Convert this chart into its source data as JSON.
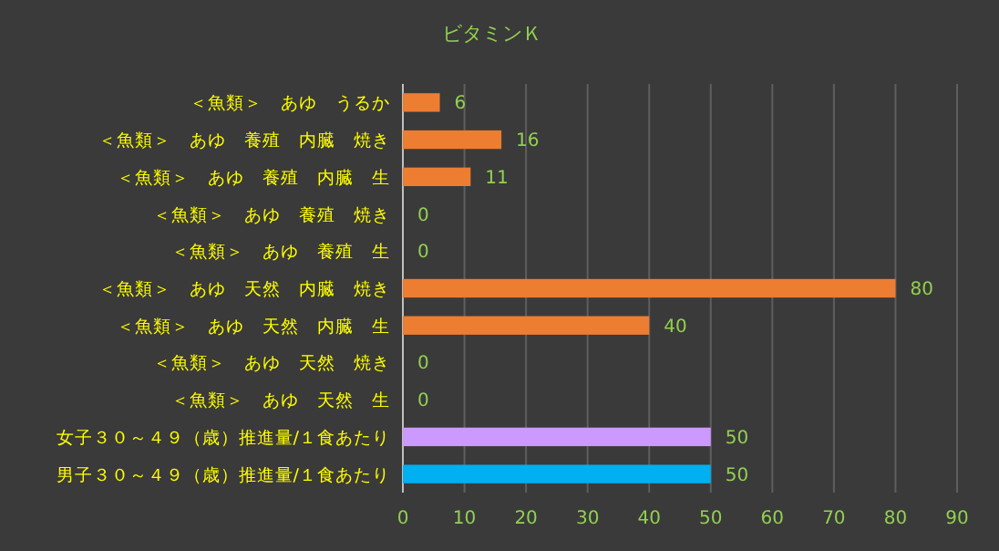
{
  "chart_data": {
    "type": "bar",
    "orientation": "horizontal",
    "title": "ビタミンＫ",
    "categories": [
      "＜魚類＞　あゆ　うるか",
      "＜魚類＞　あゆ　養殖　内臓　焼き",
      "＜魚類＞　あゆ　養殖　内臓　生",
      "＜魚類＞　あゆ　養殖　焼き",
      "＜魚類＞　あゆ　養殖　生",
      "＜魚類＞　あゆ　天然　内臓　焼き",
      "＜魚類＞　あゆ　天然　内臓　生",
      "＜魚類＞　あゆ　天然　焼き",
      "＜魚類＞　あゆ　天然　生",
      "女子３０～４９（歳）推進量/１食あたり",
      "男子３０～４９（歳）推進量/１食あたり"
    ],
    "values": [
      6,
      16,
      11,
      0,
      0,
      80,
      40,
      0,
      0,
      50,
      50
    ],
    "colors": [
      "#ed7d31",
      "#ed7d31",
      "#ed7d31",
      "#ed7d31",
      "#ed7d31",
      "#ed7d31",
      "#ed7d31",
      "#ed7d31",
      "#ed7d31",
      "#cc99ff",
      "#00b0f0"
    ],
    "data_labels": true,
    "xlim": [
      0,
      90
    ],
    "xticks": [
      0,
      10,
      20,
      30,
      40,
      50,
      60,
      70,
      80,
      90
    ],
    "grid": "x"
  }
}
